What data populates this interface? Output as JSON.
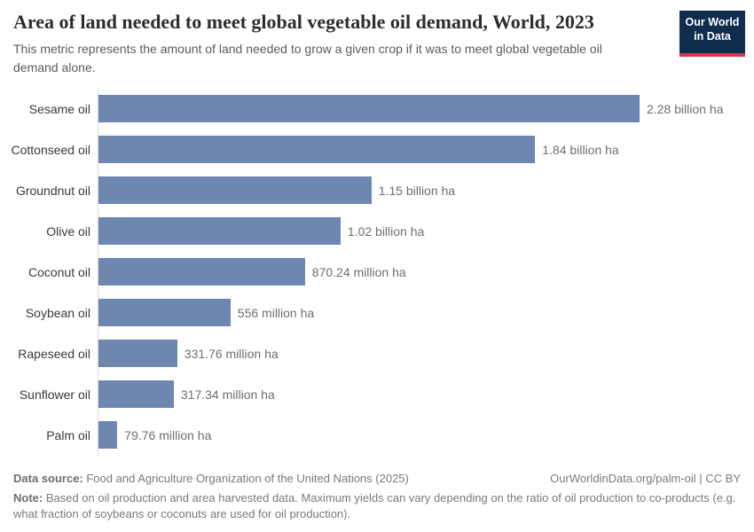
{
  "header": {
    "title": "Area of land needed to meet global vegetable oil demand, World, 2023",
    "subtitle": "This metric represents the amount of land needed to grow a given crop if it was to meet global vegetable oil demand alone.",
    "logo": {
      "line1": "Our World",
      "line2": "in Data"
    }
  },
  "chart_data": {
    "type": "bar",
    "orientation": "horizontal",
    "title": "Area of land needed to meet global vegetable oil demand, World, 2023",
    "unit": "ha",
    "categories": [
      "Sesame oil",
      "Cottonseed oil",
      "Groundnut oil",
      "Olive oil",
      "Coconut oil",
      "Soybean oil",
      "Rapeseed oil",
      "Sunflower oil",
      "Palm oil"
    ],
    "values": [
      2280000000,
      1840000000,
      1150000000,
      1020000000,
      870240000,
      556000000,
      331760000,
      317340000,
      79760000
    ],
    "value_labels": [
      "2.28 billion ha",
      "1.84 billion ha",
      "1.15 billion ha",
      "1.02 billion ha",
      "870.24 million ha",
      "556 million ha",
      "331.76 million ha",
      "317.34 million ha",
      "79.76 million ha"
    ],
    "xlim": [
      0,
      2280000000
    ],
    "grid": false,
    "legend": false,
    "bar_color": "#6d87b0",
    "axis_color": "#dcdcdc"
  },
  "footer": {
    "data_source_label": "Data source:",
    "data_source_text": " Food and Agriculture Organization of the United Nations (2025)",
    "attribution": "OurWorldinData.org/palm-oil | CC BY",
    "note_label": "Note:",
    "note_text": " Based on oil production and area harvested data. Maximum yields can vary depending on the ratio of oil production to co-products (e.g. what fraction of soybeans or coconuts are used for oil production)."
  }
}
